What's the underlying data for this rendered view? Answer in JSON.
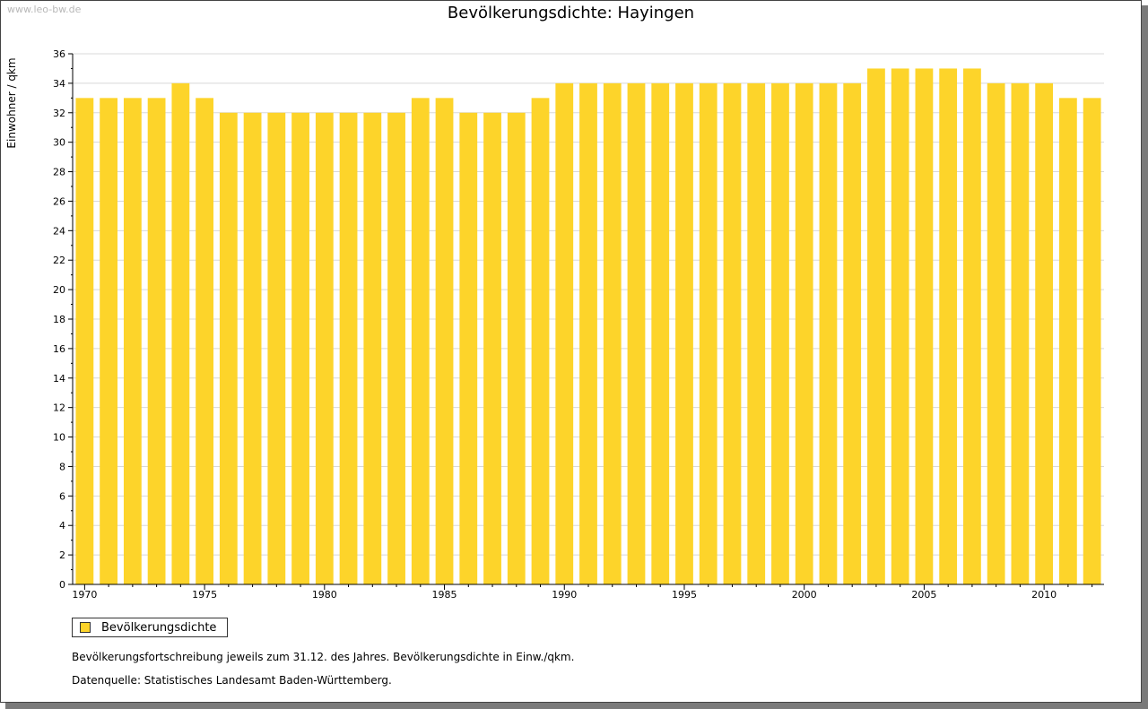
{
  "watermark": "www.leo-bw.de",
  "title": "Bevölkerungsdichte: Hayingen",
  "chart_data": {
    "type": "bar",
    "title": "Bevölkerungsdichte: Hayingen",
    "xlabel": "",
    "ylabel": "Einwohner / qkm",
    "ylim": [
      0,
      36
    ],
    "y_ticks": [
      0,
      2,
      4,
      6,
      8,
      10,
      12,
      14,
      16,
      18,
      20,
      22,
      24,
      26,
      28,
      30,
      32,
      34,
      36
    ],
    "x_tick_labels": [
      "1970",
      "1975",
      "1980",
      "1985",
      "1990",
      "1995",
      "2000",
      "2005",
      "2010"
    ],
    "grid": true,
    "legend_position": "bottom-left",
    "bar_color": "#FDD42A",
    "categories": [
      1970,
      1971,
      1972,
      1973,
      1974,
      1975,
      1976,
      1977,
      1978,
      1979,
      1980,
      1981,
      1982,
      1983,
      1984,
      1985,
      1986,
      1987,
      1988,
      1989,
      1990,
      1991,
      1992,
      1993,
      1994,
      1995,
      1996,
      1997,
      1998,
      1999,
      2000,
      2001,
      2002,
      2003,
      2004,
      2005,
      2006,
      2007,
      2008,
      2009,
      2010,
      2011,
      2012
    ],
    "series": [
      {
        "name": "Bevölkerungsdichte",
        "values": [
          33,
          33,
          33,
          33,
          34,
          33,
          32,
          32,
          32,
          32,
          32,
          32,
          32,
          32,
          33,
          33,
          32,
          32,
          32,
          33,
          34,
          34,
          34,
          34,
          34,
          34,
          34,
          34,
          34,
          34,
          34,
          34,
          34,
          35,
          35,
          35,
          35,
          35,
          34,
          34,
          34,
          33,
          33
        ]
      }
    ]
  },
  "legend": {
    "label": "Bevölkerungsdichte"
  },
  "notes": {
    "line1": "Bevölkerungsfortschreibung jeweils zum 31.12. des Jahres. Bevölkerungsdichte in Einw./qkm.",
    "line2": "Datenquelle: Statistisches Landesamt Baden-Württemberg."
  }
}
